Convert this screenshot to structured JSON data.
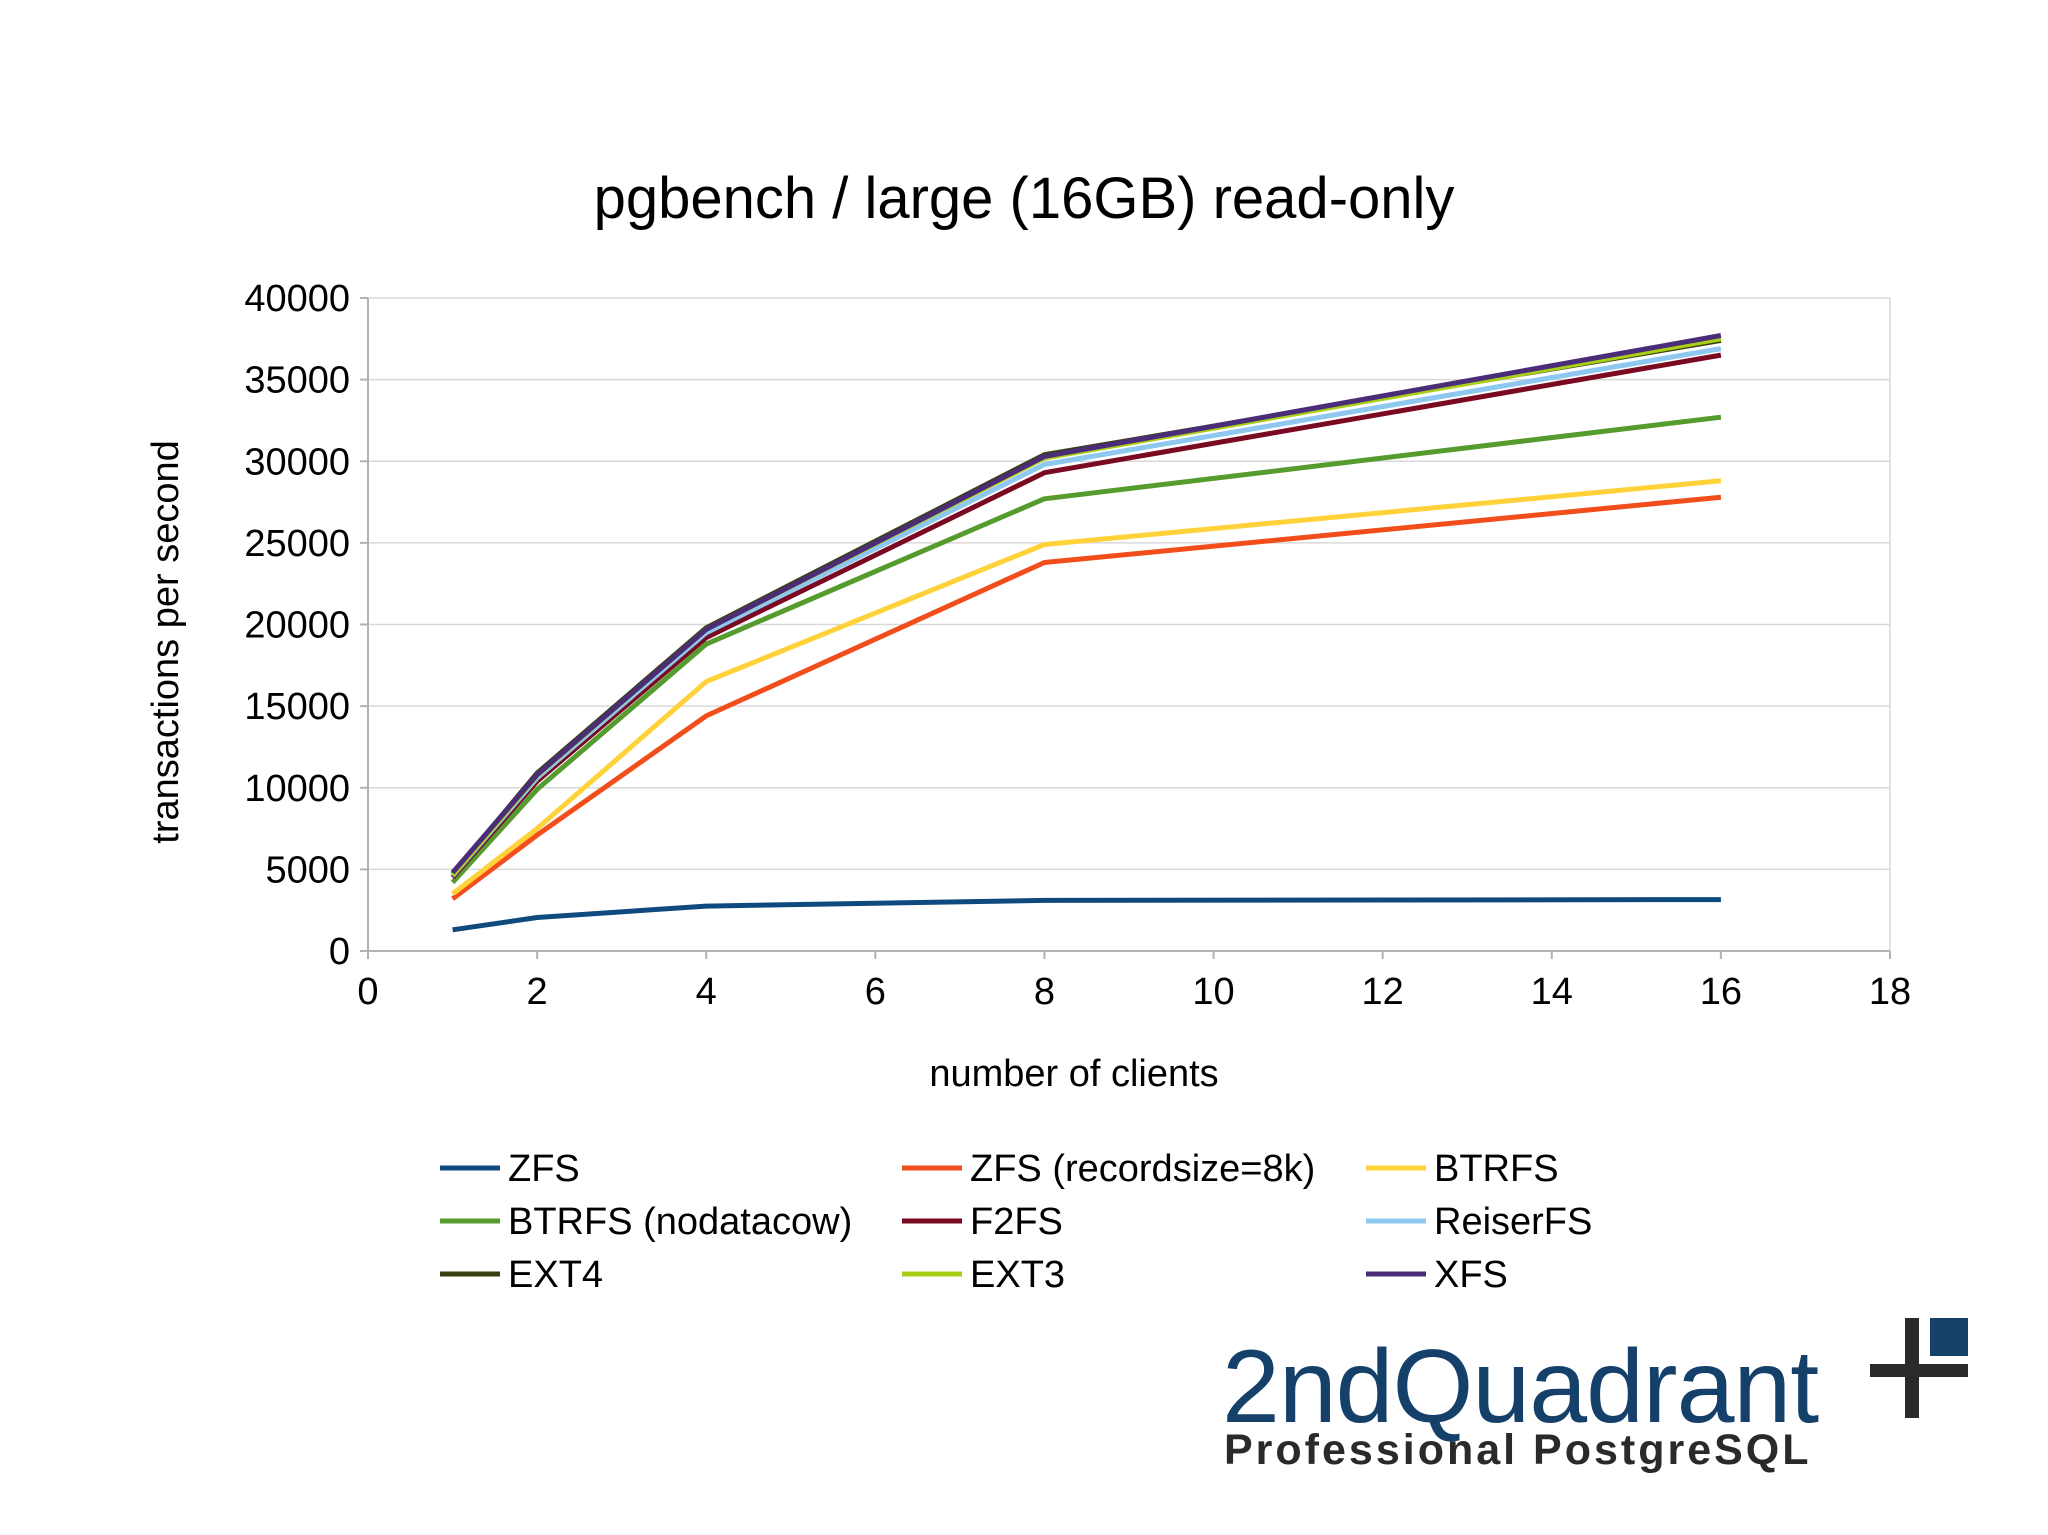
{
  "chart_data": {
    "type": "line",
    "title": "pgbench / large (16GB) read-only",
    "xlabel": "number of clients",
    "ylabel": "transactions per second",
    "xlim": [
      0,
      18
    ],
    "ylim": [
      0,
      40000
    ],
    "xticks": [
      0,
      2,
      4,
      6,
      8,
      10,
      12,
      14,
      16,
      18
    ],
    "yticks": [
      0,
      5000,
      10000,
      15000,
      20000,
      25000,
      30000,
      35000,
      40000
    ],
    "grid": "horizontal",
    "legend_position": "bottom",
    "x": [
      1,
      2,
      4,
      8,
      16
    ],
    "series": [
      {
        "name": "ZFS",
        "color": "#0f4a7f",
        "values": [
          1300,
          2050,
          2750,
          3100,
          3150
        ]
      },
      {
        "name": "ZFS (recordsize=8k)",
        "color": "#f24e1b",
        "values": [
          3200,
          7100,
          14400,
          23800,
          27800
        ]
      },
      {
        "name": "BTRFS",
        "color": "#ffd23a",
        "values": [
          3500,
          7500,
          16500,
          24900,
          28800
        ]
      },
      {
        "name": "BTRFS (nodatacow)",
        "color": "#559b2d",
        "values": [
          4200,
          9900,
          18800,
          27700,
          32700
        ]
      },
      {
        "name": "F2FS",
        "color": "#7a0a22",
        "values": [
          4500,
          10400,
          19200,
          29300,
          36500
        ]
      },
      {
        "name": "ReiserFS",
        "color": "#8ec8f0",
        "values": [
          4600,
          10600,
          19500,
          29800,
          36900
        ]
      },
      {
        "name": "EXT4",
        "color": "#394010",
        "values": [
          4700,
          10900,
          19800,
          30400,
          37400
        ]
      },
      {
        "name": "EXT3",
        "color": "#a8cf16",
        "values": [
          4650,
          10750,
          19700,
          30200,
          37500
        ]
      },
      {
        "name": "XFS",
        "color": "#4b2c78",
        "values": [
          4800,
          10800,
          19700,
          30300,
          37700
        ]
      }
    ]
  },
  "logo": {
    "main_text": "2ndQuadrant",
    "sub_text": "Professional PostgreSQL",
    "colors": {
      "blue": "#14406a",
      "dark": "#2a2a2a"
    }
  }
}
